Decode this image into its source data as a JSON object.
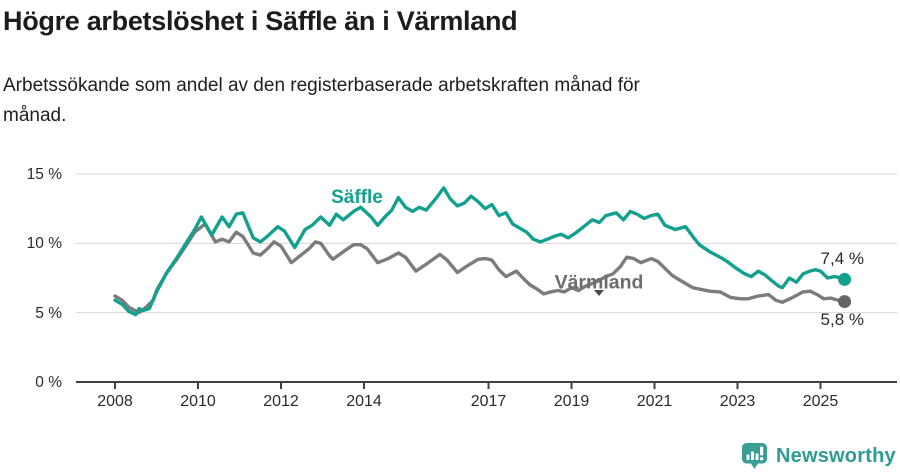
{
  "header": {
    "title": "Högre arbetslöshet i Säffle än i Värmland",
    "subtitle": "Arbetssökande som andel av den registerbaserade arbetskraften månad för månad.",
    "subtitle_lines": [
      "Arbetssökande som andel av den registerbaserade arbetskraften månad för",
      "månad."
    ]
  },
  "chart_data": {
    "type": "line",
    "title": "Högre arbetslöshet i Säffle än i Värmland",
    "xlabel": "",
    "ylabel": "Arbetssökande som andel av den registerbaserade arbetskraften (%)",
    "ylim": [
      0,
      15.5
    ],
    "xlim": [
      2007.5,
      2026.2
    ],
    "grid": "horizontal",
    "legend_position": "inline-labels-on-lines",
    "y_ticks": [
      {
        "v": 0,
        "label": "0 %"
      },
      {
        "v": 5,
        "label": "5 %"
      },
      {
        "v": 10,
        "label": "10 %"
      },
      {
        "v": 15,
        "label": "15 %"
      }
    ],
    "x_ticks": [
      {
        "t": 2008,
        "label": "2008"
      },
      {
        "t": 2010,
        "label": "2010"
      },
      {
        "t": 2012,
        "label": "2012"
      },
      {
        "t": 2014,
        "label": "2014"
      },
      {
        "t": 2017,
        "label": "2017"
      },
      {
        "t": 2019,
        "label": "2019"
      },
      {
        "t": 2021,
        "label": "2021"
      },
      {
        "t": 2023,
        "label": "2023"
      },
      {
        "t": 2025,
        "label": "2025"
      }
    ],
    "series": [
      {
        "name": "Värmland",
        "color": "#7c7c7c",
        "dot_color": "#646467",
        "end_label": "5,8 %",
        "end_value": 5.8,
        "points": [
          [
            2008.0,
            6.2
          ],
          [
            2008.17,
            5.9
          ],
          [
            2008.33,
            5.4
          ],
          [
            2008.58,
            5.0
          ],
          [
            2008.75,
            5.4
          ],
          [
            2008.92,
            5.9
          ],
          [
            2009.0,
            6.6
          ],
          [
            2009.25,
            7.9
          ],
          [
            2009.5,
            8.9
          ],
          [
            2009.75,
            10.0
          ],
          [
            2009.92,
            10.8
          ],
          [
            2010.17,
            11.4
          ],
          [
            2010.42,
            10.1
          ],
          [
            2010.58,
            10.3
          ],
          [
            2010.75,
            10.1
          ],
          [
            2010.92,
            10.8
          ],
          [
            2011.08,
            10.5
          ],
          [
            2011.33,
            9.3
          ],
          [
            2011.5,
            9.15
          ],
          [
            2011.67,
            9.6
          ],
          [
            2011.83,
            10.1
          ],
          [
            2012.0,
            9.8
          ],
          [
            2012.25,
            8.6
          ],
          [
            2012.5,
            9.2
          ],
          [
            2012.67,
            9.6
          ],
          [
            2012.83,
            10.1
          ],
          [
            2012.96,
            10.0
          ],
          [
            2013.17,
            9.1
          ],
          [
            2013.25,
            8.85
          ],
          [
            2013.5,
            9.4
          ],
          [
            2013.75,
            9.9
          ],
          [
            2013.92,
            9.9
          ],
          [
            2014.08,
            9.6
          ],
          [
            2014.33,
            8.6
          ],
          [
            2014.58,
            8.9
          ],
          [
            2014.83,
            9.3
          ],
          [
            2015.0,
            9.0
          ],
          [
            2015.25,
            8.0
          ],
          [
            2015.5,
            8.5
          ],
          [
            2015.83,
            9.2
          ],
          [
            2016.0,
            8.8
          ],
          [
            2016.25,
            7.9
          ],
          [
            2016.5,
            8.4
          ],
          [
            2016.75,
            8.85
          ],
          [
            2016.92,
            8.9
          ],
          [
            2017.08,
            8.8
          ],
          [
            2017.25,
            8.1
          ],
          [
            2017.42,
            7.6
          ],
          [
            2017.67,
            8.0
          ],
          [
            2017.83,
            7.5
          ],
          [
            2018.0,
            7.0
          ],
          [
            2018.17,
            6.7
          ],
          [
            2018.33,
            6.35
          ],
          [
            2018.5,
            6.5
          ],
          [
            2018.67,
            6.6
          ],
          [
            2018.83,
            6.5
          ],
          [
            2019.0,
            6.8
          ],
          [
            2019.17,
            6.6
          ],
          [
            2019.33,
            6.9
          ],
          [
            2019.58,
            7.2
          ],
          [
            2019.83,
            7.6
          ],
          [
            2020.0,
            7.8
          ],
          [
            2020.17,
            8.3
          ],
          [
            2020.33,
            9.0
          ],
          [
            2020.5,
            8.9
          ],
          [
            2020.67,
            8.6
          ],
          [
            2020.92,
            8.9
          ],
          [
            2021.08,
            8.7
          ],
          [
            2021.25,
            8.2
          ],
          [
            2021.42,
            7.7
          ],
          [
            2021.58,
            7.4
          ],
          [
            2021.75,
            7.1
          ],
          [
            2021.92,
            6.8
          ],
          [
            2022.08,
            6.7
          ],
          [
            2022.33,
            6.55
          ],
          [
            2022.58,
            6.5
          ],
          [
            2022.83,
            6.1
          ],
          [
            2023.08,
            6.0
          ],
          [
            2023.25,
            6.0
          ],
          [
            2023.5,
            6.2
          ],
          [
            2023.75,
            6.3
          ],
          [
            2023.92,
            5.9
          ],
          [
            2024.08,
            5.75
          ],
          [
            2024.33,
            6.1
          ],
          [
            2024.58,
            6.5
          ],
          [
            2024.75,
            6.55
          ],
          [
            2024.92,
            6.3
          ],
          [
            2025.08,
            6.0
          ],
          [
            2025.25,
            6.05
          ],
          [
            2025.42,
            5.9
          ],
          [
            2025.58,
            5.8
          ]
        ]
      },
      {
        "name": "Säffle",
        "color": "#13a08f",
        "dot_color": "#13a08f",
        "end_label": "7,4 %",
        "end_value": 7.4,
        "points": [
          [
            2008.0,
            5.9
          ],
          [
            2008.17,
            5.6
          ],
          [
            2008.33,
            5.1
          ],
          [
            2008.5,
            4.85
          ],
          [
            2008.58,
            5.3
          ],
          [
            2008.67,
            5.15
          ],
          [
            2008.83,
            5.3
          ],
          [
            2009.0,
            6.5
          ],
          [
            2009.25,
            7.9
          ],
          [
            2009.5,
            9.0
          ],
          [
            2009.75,
            10.2
          ],
          [
            2009.92,
            11.0
          ],
          [
            2010.08,
            11.9
          ],
          [
            2010.33,
            10.6
          ],
          [
            2010.58,
            11.9
          ],
          [
            2010.75,
            11.2
          ],
          [
            2010.92,
            12.1
          ],
          [
            2011.08,
            12.2
          ],
          [
            2011.33,
            10.4
          ],
          [
            2011.5,
            10.1
          ],
          [
            2011.67,
            10.5
          ],
          [
            2011.92,
            11.2
          ],
          [
            2012.08,
            10.9
          ],
          [
            2012.33,
            9.7
          ],
          [
            2012.58,
            11.0
          ],
          [
            2012.75,
            11.3
          ],
          [
            2012.96,
            11.9
          ],
          [
            2013.17,
            11.3
          ],
          [
            2013.33,
            12.1
          ],
          [
            2013.5,
            11.7
          ],
          [
            2013.75,
            12.3
          ],
          [
            2013.92,
            12.6
          ],
          [
            2014.17,
            11.9
          ],
          [
            2014.33,
            11.3
          ],
          [
            2014.5,
            11.9
          ],
          [
            2014.67,
            12.4
          ],
          [
            2014.83,
            13.3
          ],
          [
            2015.0,
            12.6
          ],
          [
            2015.17,
            12.3
          ],
          [
            2015.33,
            12.6
          ],
          [
            2015.5,
            12.4
          ],
          [
            2015.75,
            13.3
          ],
          [
            2015.92,
            14.0
          ],
          [
            2016.08,
            13.2
          ],
          [
            2016.25,
            12.7
          ],
          [
            2016.42,
            12.9
          ],
          [
            2016.58,
            13.4
          ],
          [
            2016.75,
            13.0
          ],
          [
            2016.92,
            12.5
          ],
          [
            2017.08,
            12.8
          ],
          [
            2017.25,
            12.0
          ],
          [
            2017.42,
            12.2
          ],
          [
            2017.58,
            11.4
          ],
          [
            2017.75,
            11.1
          ],
          [
            2017.92,
            10.8
          ],
          [
            2018.08,
            10.3
          ],
          [
            2018.25,
            10.1
          ],
          [
            2018.42,
            10.3
          ],
          [
            2018.58,
            10.5
          ],
          [
            2018.75,
            10.65
          ],
          [
            2018.92,
            10.4
          ],
          [
            2019.08,
            10.7
          ],
          [
            2019.25,
            11.1
          ],
          [
            2019.5,
            11.7
          ],
          [
            2019.67,
            11.5
          ],
          [
            2019.83,
            12.0
          ],
          [
            2020.08,
            12.2
          ],
          [
            2020.25,
            11.7
          ],
          [
            2020.42,
            12.3
          ],
          [
            2020.58,
            12.1
          ],
          [
            2020.75,
            11.8
          ],
          [
            2020.92,
            12.0
          ],
          [
            2021.08,
            12.1
          ],
          [
            2021.25,
            11.3
          ],
          [
            2021.5,
            11.0
          ],
          [
            2021.75,
            11.2
          ],
          [
            2021.92,
            10.5
          ],
          [
            2022.08,
            9.9
          ],
          [
            2022.33,
            9.4
          ],
          [
            2022.58,
            9.0
          ],
          [
            2022.75,
            8.7
          ],
          [
            2022.92,
            8.3
          ],
          [
            2023.17,
            7.8
          ],
          [
            2023.33,
            7.6
          ],
          [
            2023.5,
            8.0
          ],
          [
            2023.67,
            7.7
          ],
          [
            2023.83,
            7.3
          ],
          [
            2024.0,
            6.9
          ],
          [
            2024.08,
            6.8
          ],
          [
            2024.25,
            7.5
          ],
          [
            2024.42,
            7.2
          ],
          [
            2024.58,
            7.8
          ],
          [
            2024.75,
            8.0
          ],
          [
            2024.87,
            8.1
          ],
          [
            2025.0,
            8.0
          ],
          [
            2025.17,
            7.5
          ],
          [
            2025.33,
            7.6
          ],
          [
            2025.5,
            7.5
          ],
          [
            2025.58,
            7.4
          ]
        ]
      }
    ],
    "colors": {
      "saffle": "#13a08f",
      "varmland": "#7c7c7c",
      "grid": "#d8d8d8",
      "axis": "#404040",
      "text": "#1c1c1c"
    }
  },
  "footer": {
    "brand": "Newsworthy",
    "brand_color": "#2e9c94",
    "logo_icon": "bar-chart-speech-bubble-icon"
  }
}
